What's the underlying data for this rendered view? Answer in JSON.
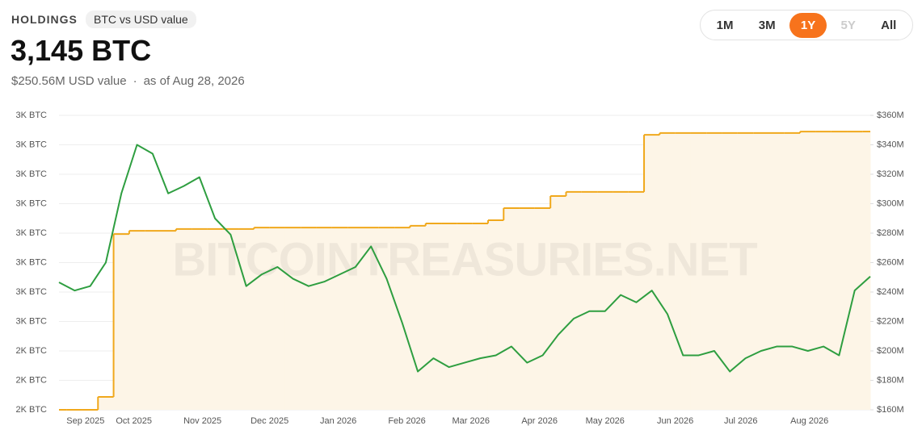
{
  "header": {
    "label": "HOLDINGS",
    "badge": "BTC vs USD value",
    "headline": "3,145 BTC",
    "usd": "$250.56M USD value",
    "separator": "·",
    "asof": "as of Aug 28, 2026",
    "ranges": [
      "1M",
      "3M",
      "1Y",
      "5Y",
      "All"
    ],
    "active_range": "1Y",
    "disabled_range": "5Y",
    "watermark": "BITCOINTREASURIES.NET"
  },
  "chart_data": {
    "type": "line",
    "x": [
      0,
      1,
      2,
      3,
      4,
      5,
      6,
      7,
      8,
      9,
      10,
      11,
      12,
      13,
      14,
      15,
      16,
      17,
      18,
      19,
      20,
      21,
      22,
      23,
      24,
      25,
      26,
      27,
      28,
      29,
      30,
      31,
      32,
      33,
      34,
      35,
      36,
      37,
      38,
      39,
      40,
      41,
      42,
      43,
      44,
      45,
      46,
      47,
      48,
      49,
      50,
      51,
      52
    ],
    "xlim": [
      0,
      52
    ],
    "xticks": [
      {
        "value": 1.7,
        "label": "Sep 2025"
      },
      {
        "value": 4.8,
        "label": "Oct 2025"
      },
      {
        "value": 9.2,
        "label": "Nov 2025"
      },
      {
        "value": 13.5,
        "label": "Dec 2025"
      },
      {
        "value": 17.9,
        "label": "Jan 2026"
      },
      {
        "value": 22.3,
        "label": "Feb 2026"
      },
      {
        "value": 26.4,
        "label": "Mar 2026"
      },
      {
        "value": 30.8,
        "label": "Apr 2026"
      },
      {
        "value": 35,
        "label": "May 2026"
      },
      {
        "value": 39.5,
        "label": "Jun 2026"
      },
      {
        "value": 43.7,
        "label": "Jul 2026"
      },
      {
        "value": 48.1,
        "label": "Aug 2026"
      }
    ],
    "ylim": [
      2200,
      3200
    ],
    "yticks": [
      {
        "value": 2200,
        "label": "2K BTC"
      },
      {
        "value": 2300,
        "label": "2K BTC"
      },
      {
        "value": 2400,
        "label": "2K BTC"
      },
      {
        "value": 2500,
        "label": "3K BTC"
      },
      {
        "value": 2600,
        "label": "3K BTC"
      },
      {
        "value": 2700,
        "label": "3K BTC"
      },
      {
        "value": 2800,
        "label": "3K BTC"
      },
      {
        "value": 2900,
        "label": "3K BTC"
      },
      {
        "value": 3000,
        "label": "3K BTC"
      },
      {
        "value": 3100,
        "label": "3K BTC"
      },
      {
        "value": 3200,
        "label": "3K BTC"
      }
    ],
    "y2lim": [
      160,
      360
    ],
    "y2ticks": [
      {
        "value": 160,
        "label": "$160M"
      },
      {
        "value": 180,
        "label": "$180M"
      },
      {
        "value": 200,
        "label": "$200M"
      },
      {
        "value": 220,
        "label": "$220M"
      },
      {
        "value": 240,
        "label": "$240M"
      },
      {
        "value": 260,
        "label": "$260M"
      },
      {
        "value": 280,
        "label": "$280M"
      },
      {
        "value": 300,
        "label": "$300M"
      },
      {
        "value": 320,
        "label": "$320M"
      },
      {
        "value": 340,
        "label": "$340M"
      },
      {
        "value": 360,
        "label": "$360M"
      }
    ],
    "grid": true,
    "series": [
      {
        "color": "#f0a81c",
        "fill": "#fdf5e7",
        "step": true,
        "values": [
          2200,
          2200,
          2200,
          2244,
          2797,
          2808,
          2808,
          2808,
          2814,
          2814,
          2814,
          2814,
          2814,
          2819,
          2819,
          2819,
          2819,
          2819,
          2819,
          2819,
          2819,
          2819,
          2819,
          2825,
          2833,
          2833,
          2833,
          2833,
          2844,
          2885,
          2885,
          2885,
          2926,
          2940,
          2940,
          2940,
          2940,
          2940,
          3134,
          3140,
          3140,
          3140,
          3140,
          3140,
          3140,
          3140,
          3140,
          3140,
          3145,
          3145,
          3145,
          3145,
          3145
        ]
      },
      {
        "color": "#2e9e40",
        "axis": "y2",
        "values": [
          246.6,
          241,
          244,
          260,
          307,
          340,
          334,
          307,
          312,
          318,
          290,
          279,
          244,
          252,
          257,
          249,
          244,
          247,
          252,
          257,
          271,
          249,
          219,
          186,
          195,
          189,
          192,
          195,
          197,
          203,
          192,
          197,
          211,
          222,
          227,
          227,
          238,
          233,
          241,
          225,
          197,
          197,
          200,
          186,
          195,
          200,
          203,
          203,
          200,
          203,
          197,
          241,
          250.56
        ]
      }
    ]
  }
}
